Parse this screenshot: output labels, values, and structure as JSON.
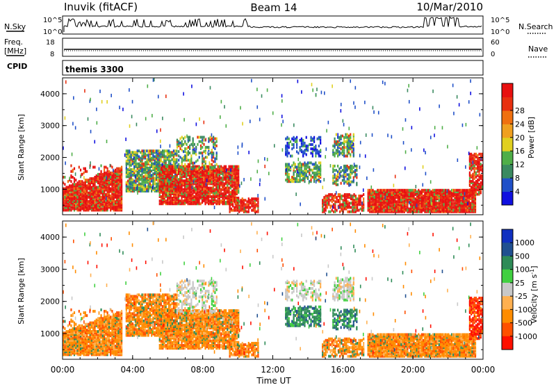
{
  "header": {
    "station": "Inuvik (fitACF)",
    "beam": "Beam 14",
    "date": "10/Mar/2010"
  },
  "nsky_panel": {
    "left_label": "N.Sky",
    "right_label": "N.Search",
    "left_ticks": [
      "10^5",
      "10^0"
    ],
    "right_ticks": [
      "10^5",
      "10^0"
    ]
  },
  "freq_panel": {
    "left_label": "Freq.",
    "unit": "[MHz]",
    "left_ticks": [
      "18",
      "8"
    ],
    "right_ticks": [
      "60",
      "0"
    ],
    "right_label": "Nave"
  },
  "cpid_panel": {
    "label": "CPID",
    "value": "themis 3300"
  },
  "colors": {
    "power_scale": [
      "#1010e0",
      "#2050c8",
      "#3a8a60",
      "#4fae48",
      "#e0d020",
      "#f0a020",
      "#f07010",
      "#e83010",
      "#e81010"
    ],
    "velocity_scale": [
      "#ff1000",
      "#ff5000",
      "#ff8c00",
      "#ffb050",
      "#c8c8c8",
      "#40d040",
      "#2e8b57",
      "#205090",
      "#1030c0"
    ]
  },
  "chart_data": [
    {
      "type": "heatmap",
      "quantity": "power",
      "ylabel": "Slant Range [km]",
      "ylim": [
        200,
        4500
      ],
      "yticks": [
        "1000",
        "2000",
        "3000",
        "4000"
      ],
      "colorbar_label": "Power [dB]",
      "colorbar_ticks": [
        "4",
        "8",
        "12",
        "16",
        "20",
        "24",
        "28"
      ],
      "clim": [
        0,
        30
      ]
    },
    {
      "type": "heatmap",
      "quantity": "velocity",
      "ylabel": "Slant Range [km]",
      "ylim": [
        200,
        4500
      ],
      "yticks": [
        "1000",
        "2000",
        "3000",
        "4000"
      ],
      "colorbar_label": "Velocity [m s",
      "colorbar_label_sup": "-1",
      "colorbar_label_end": "]",
      "colorbar_ticks": [
        "1000",
        "500",
        "100",
        "25",
        "-25",
        "-100",
        "-500",
        "-1000"
      ]
    }
  ],
  "xaxis": {
    "label": "Time UT",
    "ticks": [
      "00:00",
      "04:00",
      "08:00",
      "12:00",
      "16:00",
      "20:00",
      "00:00"
    ]
  }
}
